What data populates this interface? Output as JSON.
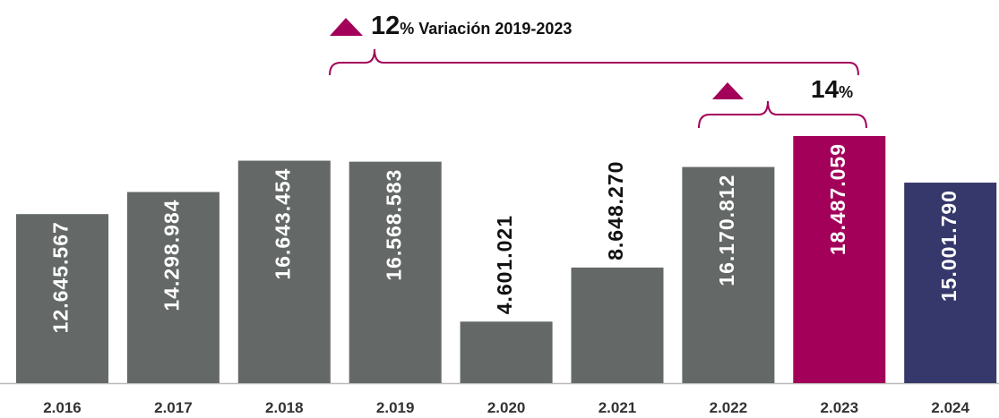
{
  "chart_data": {
    "type": "bar",
    "categories": [
      "2.016",
      "2.017",
      "2.018",
      "2.019",
      "2.020",
      "2.021",
      "2.022",
      "2.023",
      "2.024"
    ],
    "values": [
      12645567,
      14298984,
      16643454,
      16568583,
      4601021,
      8648270,
      16170812,
      18487059,
      15001790
    ],
    "value_labels": [
      "12.645.567",
      "14.298.984",
      "16.643.454",
      "16.568.583",
      "4.601.021",
      "8.648.270",
      "16.170.812",
      "18.487.059",
      "15.001.790"
    ],
    "colors": [
      "#646867",
      "#646867",
      "#646867",
      "#646867",
      "#646867",
      "#646867",
      "#646867",
      "#a3005a",
      "#36386b"
    ],
    "annotations": [
      {
        "number": "12",
        "text": "% Variación 2019-2023"
      },
      {
        "number": "14",
        "text": "%"
      }
    ]
  }
}
